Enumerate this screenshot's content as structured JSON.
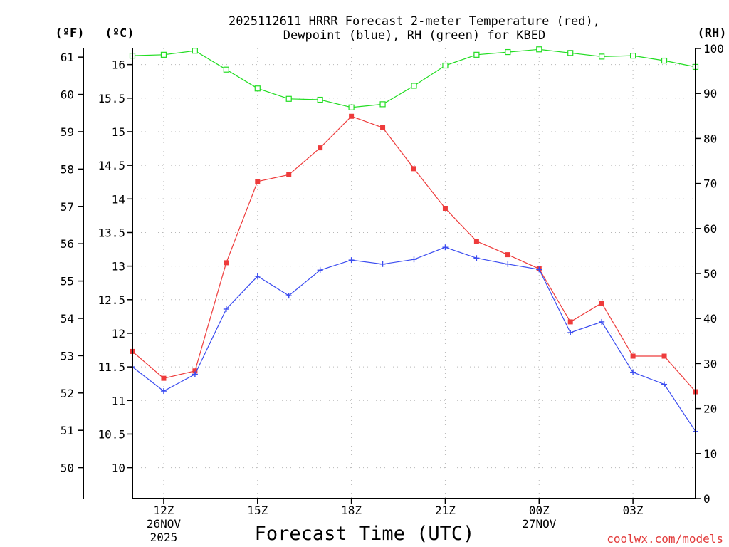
{
  "chart_data": {
    "type": "line",
    "title_line1": "2025112611 HRRR Forecast 2-meter Temperature (red),",
    "title_line2": "Dewpoint (blue), RH (green) for KBED",
    "xlabel": "Forecast Time (UTC)",
    "credit": "coolwx.com/models",
    "unit_labels": {
      "fahrenheit": "(ºF)",
      "celsius": "(ºC)",
      "rh": "(RH)"
    },
    "hours": [
      11,
      12,
      13,
      14,
      15,
      16,
      17,
      18,
      19,
      20,
      21,
      22,
      23,
      24,
      25,
      26,
      27,
      28,
      29
    ],
    "xlim": [
      11,
      29
    ],
    "x_ticks": [
      {
        "hour": 12,
        "lines": [
          "12Z",
          "26NOV",
          "2025"
        ]
      },
      {
        "hour": 15,
        "lines": [
          "15Z"
        ]
      },
      {
        "hour": 18,
        "lines": [
          "18Z"
        ]
      },
      {
        "hour": 21,
        "lines": [
          "21Z"
        ]
      },
      {
        "hour": 24,
        "lines": [
          "00Z",
          "27NOV"
        ]
      },
      {
        "hour": 27,
        "lines": [
          "03Z"
        ]
      }
    ],
    "celsius_axis": {
      "ylim": [
        9.54,
        16.24
      ],
      "ticks": [
        10,
        10.5,
        11,
        11.5,
        12,
        12.5,
        13,
        13.5,
        14,
        14.5,
        15,
        15.5,
        16
      ],
      "tick_labels": [
        "10",
        "10.5",
        "11",
        "11.5",
        "12",
        "12.5",
        "13",
        "13.5",
        "14",
        "14.5",
        "15",
        "15.5",
        "16"
      ]
    },
    "fahrenheit_axis": {
      "ticks": [
        50,
        51,
        52,
        53,
        54,
        55,
        56,
        57,
        58,
        59,
        60,
        61
      ],
      "tick_labels": [
        "50",
        "51",
        "52",
        "53",
        "54",
        "55",
        "56",
        "57",
        "58",
        "59",
        "60",
        "61"
      ]
    },
    "rh_axis": {
      "ylim": [
        0,
        100
      ],
      "ticks": [
        0,
        10,
        20,
        30,
        40,
        50,
        60,
        70,
        80,
        90,
        100
      ],
      "tick_labels": [
        "0",
        "10",
        "20",
        "30",
        "40",
        "50",
        "60",
        "70",
        "80",
        "90",
        "100"
      ]
    },
    "series": [
      {
        "name": "2-meter Temperature",
        "axis": "celsius",
        "color": "#ee3b3b",
        "marker": "filled-square",
        "values": [
          11.73,
          11.33,
          11.44,
          13.05,
          14.26,
          14.36,
          14.76,
          15.23,
          15.06,
          14.45,
          13.86,
          13.37,
          13.17,
          12.96,
          12.17,
          12.45,
          11.66,
          11.66,
          11.13
        ]
      },
      {
        "name": "Dewpoint",
        "axis": "celsius",
        "color": "#3b4cf0",
        "marker": "plus",
        "values": [
          11.5,
          11.14,
          11.39,
          12.36,
          12.85,
          12.56,
          12.94,
          13.09,
          13.03,
          13.1,
          13.28,
          13.12,
          13.03,
          12.95,
          12.01,
          12.17,
          11.42,
          11.24,
          10.54
        ]
      },
      {
        "name": "RH",
        "axis": "rh",
        "color": "#22dd22",
        "marker": "open-square",
        "values": [
          98.4,
          98.6,
          99.5,
          95.3,
          91.1,
          88.8,
          88.6,
          86.9,
          87.6,
          91.7,
          96.2,
          98.6,
          99.2,
          99.8,
          99.0,
          98.2,
          98.4,
          97.3,
          95.9
        ]
      }
    ]
  }
}
